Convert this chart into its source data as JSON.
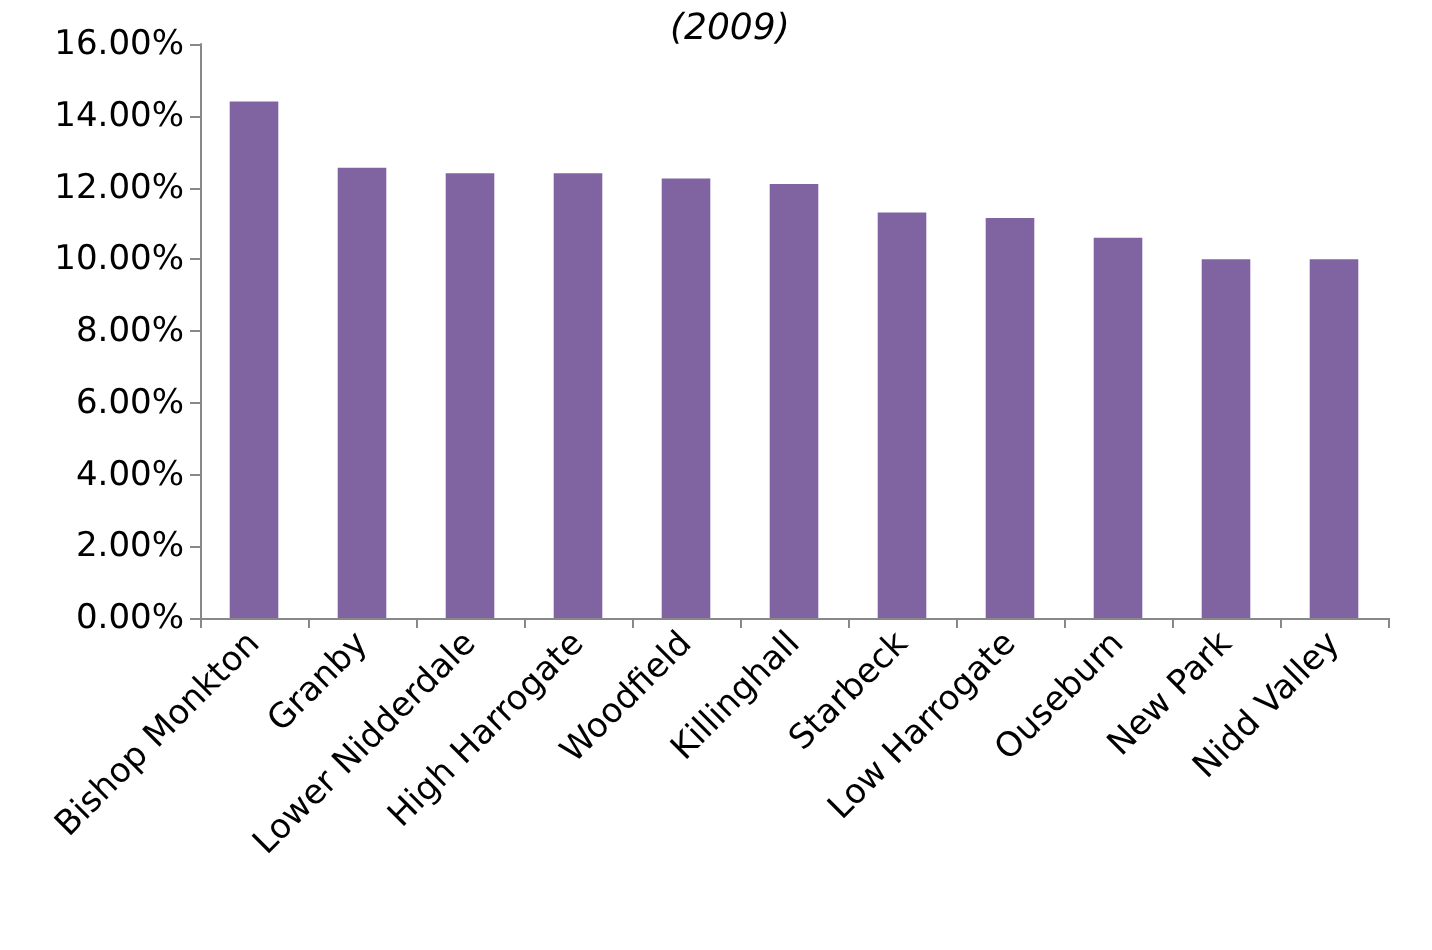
{
  "chart_data": {
    "type": "bar",
    "title": "(2009)",
    "categories": [
      "Bishop Monkton",
      "Granby",
      "Lower Nidderdale",
      "High Harrogate",
      "Woodfield",
      "Killinghall",
      "Starbeck",
      "Low Harrogate",
      "Ouseburn",
      "New Park",
      "Nidd Valley"
    ],
    "values": [
      14.4,
      12.55,
      12.4,
      12.4,
      12.25,
      12.1,
      11.3,
      11.15,
      10.6,
      10.0,
      10.0
    ],
    "color": "#8064a2",
    "ylim": [
      0,
      16
    ],
    "yticks": [
      {
        "value": 0,
        "label": "0.00%"
      },
      {
        "value": 2,
        "label": "2.00%"
      },
      {
        "value": 4,
        "label": "4.00%"
      },
      {
        "value": 6,
        "label": "6.00%"
      },
      {
        "value": 8,
        "label": "8.00%"
      },
      {
        "value": 10,
        "label": "10.00%"
      },
      {
        "value": 12,
        "label": "12.00%"
      },
      {
        "value": 14,
        "label": "14.00%"
      },
      {
        "value": 16,
        "label": "16.00%"
      }
    ],
    "grid": false
  }
}
